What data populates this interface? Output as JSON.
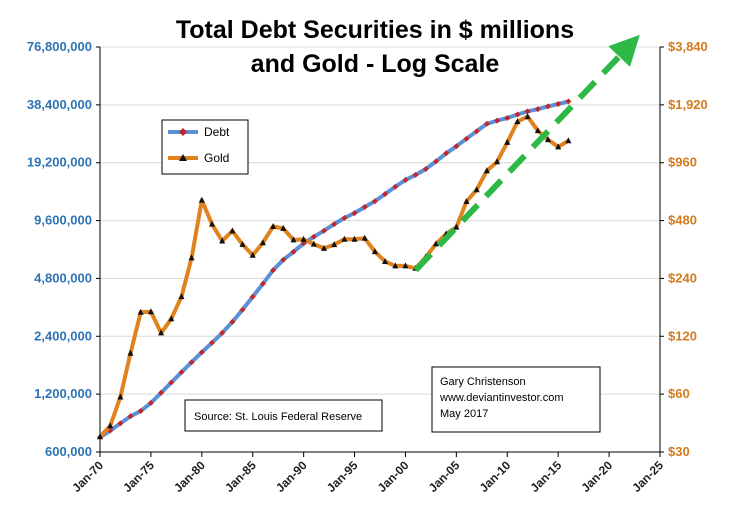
{
  "chart_data": {
    "type": "line",
    "title_line1": "Total Debt Securities in $ millions",
    "title_line2": "and Gold - Log Scale",
    "x_tick_labels": [
      "Jan-70",
      "Jan-75",
      "Jan-80",
      "Jan-85",
      "Jan-90",
      "Jan-95",
      "Jan-00",
      "Jan-05",
      "Jan-10",
      "Jan-15",
      "Jan-20",
      "Jan-25"
    ],
    "x_range": [
      1970,
      2025
    ],
    "y_left": {
      "scale": "log",
      "range": [
        600000,
        76800000
      ],
      "tick_labels": [
        "600,000",
        "1,200,000",
        "2,400,000",
        "4,800,000",
        "9,600,000",
        "19,200,000",
        "38,400,000",
        "76,800,000"
      ],
      "color": "#2E74B5"
    },
    "y_right": {
      "scale": "log",
      "range": [
        30,
        3840
      ],
      "tick_labels": [
        "$30",
        "$60",
        "$120",
        "$240",
        "$480",
        "$960",
        "$1,920",
        "$3,840"
      ],
      "color": "#D47A1C"
    },
    "grid": "horizontal",
    "legend_position": "upper-left",
    "series": [
      {
        "name": "Debt",
        "axis": "left",
        "line_color": "#5B8FD6",
        "marker_color": "#C0282C",
        "x": [
          1970,
          1971,
          1972,
          1973,
          1974,
          1975,
          1976,
          1977,
          1978,
          1979,
          1980,
          1981,
          1982,
          1983,
          1984,
          1985,
          1986,
          1987,
          1988,
          1989,
          1990,
          1991,
          1992,
          1993,
          1994,
          1995,
          1996,
          1997,
          1998,
          1999,
          2000,
          2001,
          2002,
          2003,
          2004,
          2005,
          2006,
          2007,
          2008,
          2009,
          2010,
          2011,
          2012,
          2013,
          2014,
          2015,
          2016
        ],
        "values": [
          715000,
          775000,
          845000,
          920000,
          980000,
          1080000,
          1220000,
          1380000,
          1560000,
          1760000,
          1980000,
          2220000,
          2500000,
          2850000,
          3300000,
          3850000,
          4500000,
          5300000,
          6000000,
          6600000,
          7300000,
          7900000,
          8500000,
          9200000,
          9900000,
          10500000,
          11300000,
          12100000,
          13200000,
          14400000,
          15600000,
          16600000,
          17800000,
          19500000,
          21500000,
          23400000,
          25600000,
          28000000,
          30600000,
          31800000,
          32800000,
          34200000,
          35500000,
          36500000,
          37700000,
          38800000,
          40000000
        ]
      },
      {
        "name": "Gold",
        "axis": "right",
        "line_color": "#E0821E",
        "marker_color": "#111111",
        "x": [
          1970,
          1971,
          1972,
          1973,
          1974,
          1975,
          1976,
          1977,
          1978,
          1979,
          1980,
          1981,
          1982,
          1983,
          1984,
          1985,
          1986,
          1987,
          1988,
          1989,
          1990,
          1991,
          1992,
          1993,
          1994,
          1995,
          1996,
          1997,
          1998,
          1999,
          2000,
          2001,
          2002,
          2003,
          2004,
          2005,
          2006,
          2007,
          2008,
          2009,
          2010,
          2011,
          2012,
          2013,
          2014,
          2015,
          2016
        ],
        "values": [
          36,
          41,
          58,
          98,
          160,
          161,
          125,
          148,
          193,
          307,
          612,
          460,
          376,
          424,
          361,
          317,
          368,
          447,
          437,
          381,
          383,
          362,
          344,
          360,
          384,
          384,
          388,
          331,
          294,
          279,
          279,
          271,
          310,
          363,
          409,
          444,
          603,
          695,
          872,
          972,
          1224,
          1571,
          1669,
          1411,
          1266,
          1160,
          1250
        ]
      }
    ],
    "trend_arrow": {
      "color": "#2EB846",
      "from": {
        "x": 2001,
        "gold": 265
      },
      "to": {
        "x": 2022,
        "gold": 3900
      }
    },
    "source_text": "Source:  St. Louis Federal Reserve",
    "credit_lines": [
      "Gary Christenson",
      "www.deviantinvestor.com",
      "May 2017"
    ]
  }
}
